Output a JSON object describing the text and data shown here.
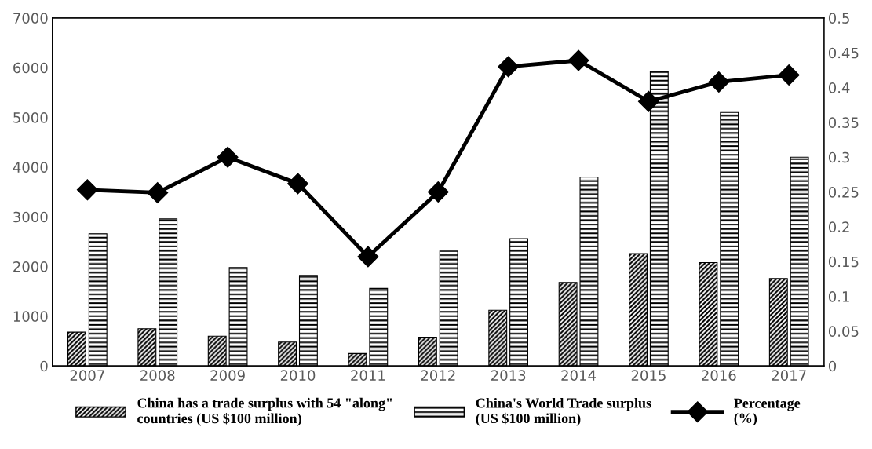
{
  "chart_data": {
    "type": "bar",
    "categories": [
      "2007",
      "2008",
      "2009",
      "2010",
      "2011",
      "2012",
      "2013",
      "2014",
      "2015",
      "2016",
      "2017"
    ],
    "series": [
      {
        "name": "China has a trade surplus with 54 \"along\"\ncountries (US $100 million)",
        "color": "#000000",
        "values": [
          680,
          750,
          600,
          480,
          250,
          580,
          1120,
          1680,
          2260,
          2080,
          1760
        ]
      },
      {
        "name": "China's World Trade surplus\n(US $100 million)",
        "color": "#000000",
        "values": [
          2660,
          2960,
          1980,
          1820,
          1560,
          2310,
          2560,
          3800,
          5930,
          5100,
          4200
        ]
      },
      {
        "name": "Percentage\n(%)",
        "type": "line",
        "axis": "y2",
        "color": "#000000",
        "marker": "diamond",
        "line_style": "solid",
        "values": [
          0.253,
          0.249,
          0.3,
          0.262,
          0.157,
          0.25,
          0.43,
          0.439,
          0.38,
          0.408,
          0.418
        ]
      }
    ],
    "ylim": [
      0,
      7000
    ],
    "yticks": [
      0,
      1000,
      2000,
      3000,
      4000,
      5000,
      6000,
      7000
    ],
    "y2lim": [
      0,
      0.5
    ],
    "y2ticks": [
      0,
      0.05,
      0.1,
      0.15,
      0.2,
      0.25,
      0.3,
      0.35,
      0.4,
      0.45,
      0.5
    ],
    "grid": false,
    "legend": "bottom"
  }
}
